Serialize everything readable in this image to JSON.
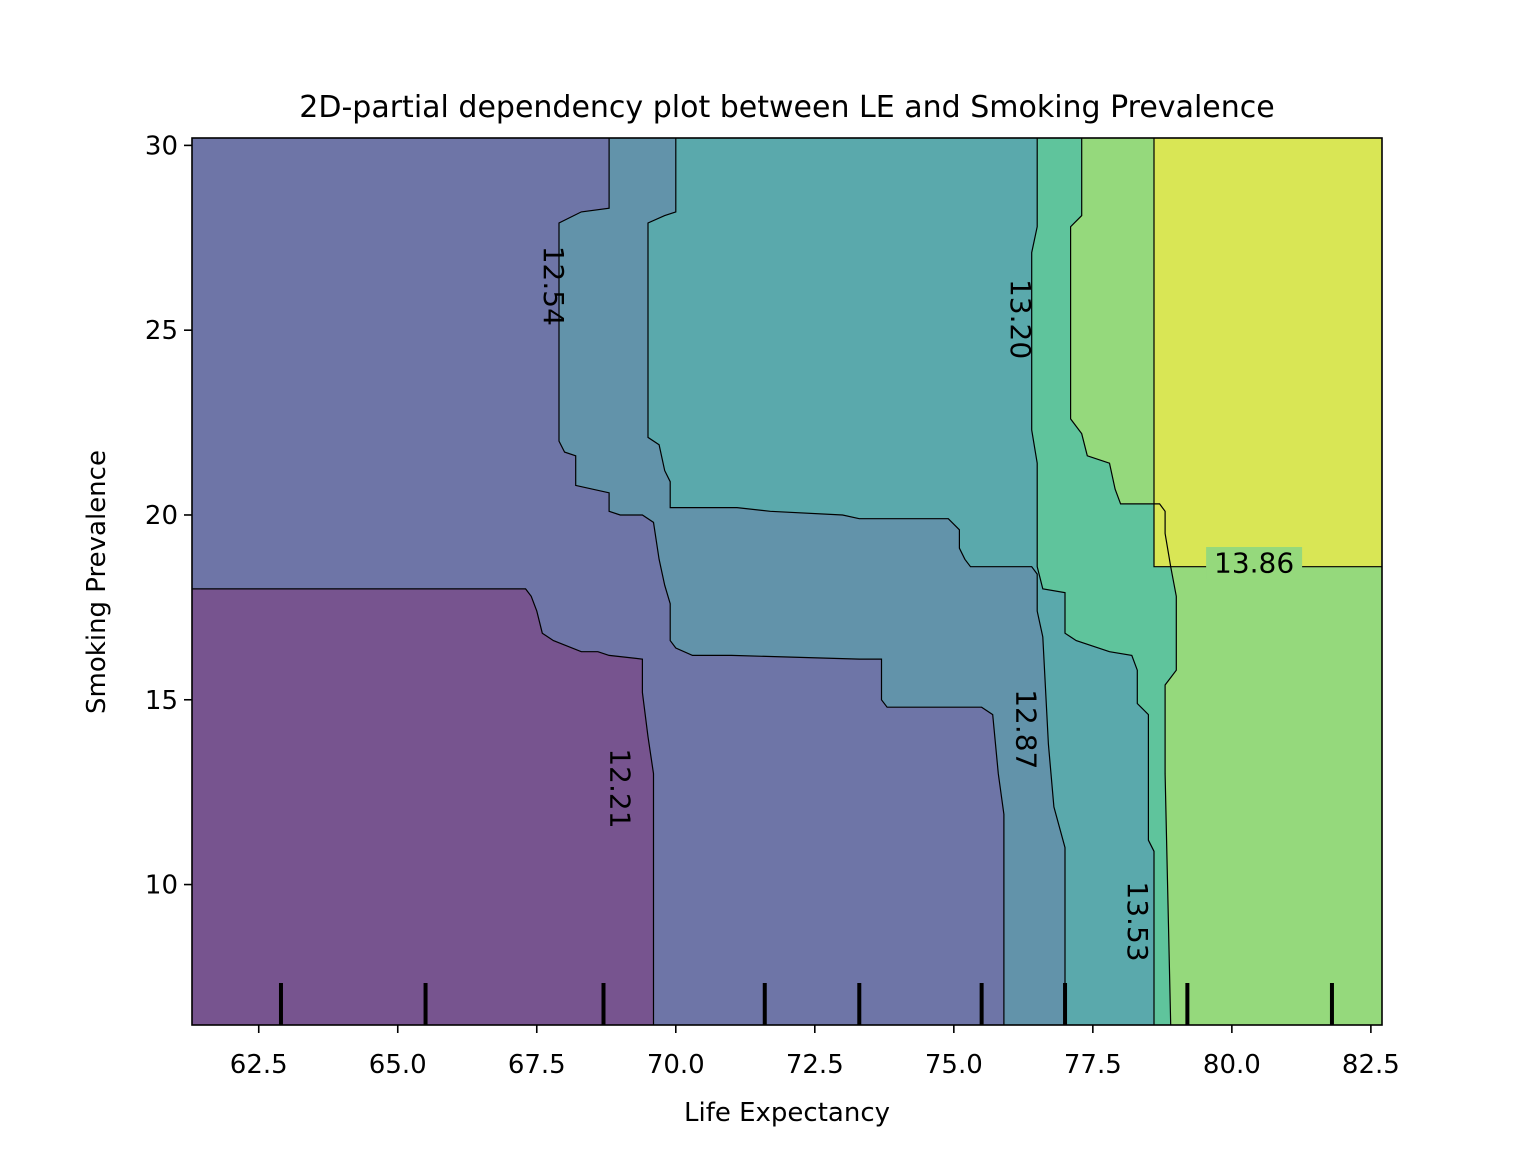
{
  "chart_data": {
    "type": "heatmap",
    "title": "2D-partial dependency plot between LE and Smoking Prevalence",
    "xlabel": "Life Expectancy",
    "ylabel": "Smoking Prevalence",
    "xlim": [
      61.3,
      82.7
    ],
    "ylim": [
      6.2,
      30.2
    ],
    "x_ticks": [
      62.5,
      65.0,
      67.5,
      70.0,
      72.5,
      75.0,
      77.5,
      80.0,
      82.5
    ],
    "x_tick_labels": [
      "62.5",
      "65.0",
      "67.5",
      "70.0",
      "72.5",
      "75.0",
      "77.5",
      "80.0",
      "82.5"
    ],
    "y_ticks": [
      10,
      15,
      20,
      25,
      30
    ],
    "y_tick_labels": [
      "10",
      "15",
      "20",
      "25",
      "30"
    ],
    "grid": false,
    "levels": [
      {
        "value": 12.05,
        "color": "#77548f"
      },
      {
        "value": 12.38,
        "color": "#6e75a7"
      },
      {
        "value": 12.71,
        "color": "#6293aa"
      },
      {
        "value": 13.04,
        "color": "#5aa9ac"
      },
      {
        "value": 13.37,
        "color": "#5fc49c"
      },
      {
        "value": 13.7,
        "color": "#95d97c"
      },
      {
        "value": 14.03,
        "color": "#d9e655"
      }
    ],
    "contour_labels": [
      {
        "text": "12.21",
        "x": 69.0,
        "y": 12.6,
        "rotation": 90
      },
      {
        "text": "12.54",
        "x": 67.8,
        "y": 26.2,
        "rotation": 90
      },
      {
        "text": "12.87",
        "x": 76.3,
        "y": 14.2,
        "rotation": 90
      },
      {
        "text": "13.20",
        "x": 76.2,
        "y": 25.3,
        "rotation": 90
      },
      {
        "text": "13.53",
        "x": 78.3,
        "y": 9.0,
        "rotation": 90
      },
      {
        "text": "13.86",
        "x": 80.4,
        "y": 18.7,
        "rotation": 0
      }
    ],
    "deciles_x": [
      62.9,
      65.5,
      68.7,
      71.6,
      73.3,
      75.5,
      77.0,
      79.2,
      81.8
    ],
    "regions": [
      {
        "level": 1,
        "boundary": [
          [
            61.3,
            30.2
          ],
          [
            61.3,
            6.2
          ],
          [
            82.7,
            6.2
          ],
          [
            82.7,
            30.2
          ]
        ]
      },
      {
        "level": 2,
        "boundary": [
          [
            68.8,
            30.2
          ],
          [
            68.8,
            28.3
          ],
          [
            68.3,
            28.2
          ],
          [
            67.9,
            27.9
          ],
          [
            67.9,
            22.0
          ],
          [
            68.0,
            21.7
          ],
          [
            68.2,
            21.6
          ],
          [
            68.2,
            20.8
          ],
          [
            68.8,
            20.6
          ],
          [
            68.8,
            20.1
          ],
          [
            69.0,
            20.0
          ],
          [
            69.4,
            20.0
          ],
          [
            69.6,
            19.8
          ],
          [
            69.7,
            18.8
          ],
          [
            69.8,
            18.1
          ],
          [
            69.9,
            17.6
          ],
          [
            69.9,
            16.6
          ],
          [
            70.0,
            16.4
          ],
          [
            70.3,
            16.2
          ],
          [
            71.0,
            16.2
          ],
          [
            73.3,
            16.1
          ],
          [
            73.7,
            16.1
          ],
          [
            73.7,
            15.0
          ],
          [
            73.8,
            14.8
          ],
          [
            75.5,
            14.8
          ],
          [
            75.7,
            14.6
          ],
          [
            75.8,
            13.0
          ],
          [
            75.9,
            11.9
          ],
          [
            75.9,
            6.2
          ],
          [
            82.7,
            6.2
          ],
          [
            82.7,
            30.2
          ]
        ]
      },
      {
        "level": 3,
        "boundary": [
          [
            70.0,
            30.2
          ],
          [
            70.0,
            28.2
          ],
          [
            69.8,
            28.1
          ],
          [
            69.5,
            27.9
          ],
          [
            69.5,
            22.1
          ],
          [
            69.7,
            21.9
          ],
          [
            69.8,
            21.2
          ],
          [
            69.9,
            20.9
          ],
          [
            69.9,
            20.2
          ],
          [
            71.1,
            20.2
          ],
          [
            71.7,
            20.1
          ],
          [
            73.0,
            20.0
          ],
          [
            73.3,
            19.9
          ],
          [
            74.9,
            19.9
          ],
          [
            75.1,
            19.6
          ],
          [
            75.1,
            19.1
          ],
          [
            75.2,
            18.8
          ],
          [
            75.3,
            18.6
          ],
          [
            76.4,
            18.6
          ],
          [
            76.5,
            18.4
          ],
          [
            76.5,
            17.4
          ],
          [
            76.6,
            16.7
          ],
          [
            76.7,
            13.8
          ],
          [
            76.8,
            12.1
          ],
          [
            77.0,
            11.0
          ],
          [
            77.0,
            6.2
          ],
          [
            82.7,
            6.2
          ],
          [
            82.7,
            30.2
          ]
        ]
      },
      {
        "level": 4,
        "boundary": [
          [
            76.5,
            30.2
          ],
          [
            76.5,
            27.8
          ],
          [
            76.4,
            27.1
          ],
          [
            76.4,
            22.3
          ],
          [
            76.5,
            21.4
          ],
          [
            76.5,
            18.6
          ],
          [
            76.6,
            18.0
          ],
          [
            77.0,
            17.9
          ],
          [
            77.0,
            16.8
          ],
          [
            77.2,
            16.6
          ],
          [
            77.8,
            16.3
          ],
          [
            78.2,
            16.2
          ],
          [
            78.3,
            15.8
          ],
          [
            78.3,
            14.9
          ],
          [
            78.5,
            14.6
          ],
          [
            78.5,
            11.2
          ],
          [
            78.6,
            10.9
          ],
          [
            78.6,
            6.2
          ],
          [
            82.7,
            6.2
          ],
          [
            82.7,
            30.2
          ]
        ]
      },
      {
        "level": 5,
        "boundary": [
          [
            77.3,
            30.2
          ],
          [
            77.3,
            28.1
          ],
          [
            77.1,
            27.8
          ],
          [
            77.1,
            22.6
          ],
          [
            77.3,
            22.2
          ],
          [
            77.4,
            21.6
          ],
          [
            77.8,
            21.4
          ],
          [
            77.9,
            20.7
          ],
          [
            78.0,
            20.3
          ],
          [
            78.7,
            20.3
          ],
          [
            78.8,
            20.1
          ],
          [
            78.8,
            19.5
          ],
          [
            78.9,
            18.6
          ],
          [
            79.0,
            17.8
          ],
          [
            79.0,
            15.8
          ],
          [
            78.8,
            15.4
          ],
          [
            78.8,
            13.0
          ],
          [
            78.9,
            6.2
          ],
          [
            82.7,
            6.2
          ],
          [
            82.7,
            30.2
          ]
        ]
      },
      {
        "level": 6,
        "boundary": [
          [
            78.6,
            30.2
          ],
          [
            78.6,
            18.6
          ],
          [
            82.7,
            18.6
          ],
          [
            82.7,
            30.2
          ]
        ]
      }
    ],
    "low_region": {
      "level": 0,
      "boundary": [
        [
          61.3,
          18.0
        ],
        [
          67.3,
          18.0
        ],
        [
          67.4,
          17.8
        ],
        [
          67.5,
          17.4
        ],
        [
          67.6,
          16.8
        ],
        [
          67.8,
          16.6
        ],
        [
          68.3,
          16.3
        ],
        [
          68.6,
          16.3
        ],
        [
          68.8,
          16.2
        ],
        [
          69.4,
          16.1
        ],
        [
          69.4,
          15.2
        ],
        [
          69.5,
          14.0
        ],
        [
          69.6,
          13.0
        ],
        [
          69.6,
          6.2
        ],
        [
          61.3,
          6.2
        ]
      ]
    }
  }
}
